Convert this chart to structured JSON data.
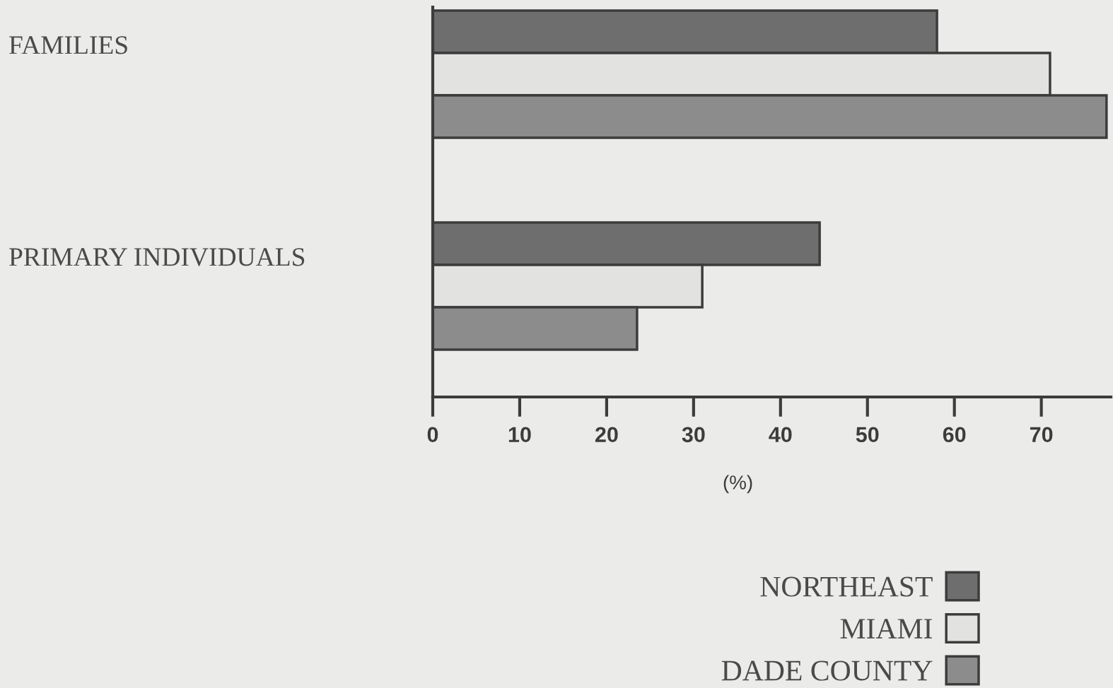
{
  "chart_data": {
    "type": "bar",
    "orientation": "horizontal",
    "categories": [
      "FAMILIES",
      "PRIMARY INDIVIDUALS"
    ],
    "series": [
      {
        "name": "NORTHEAST",
        "color": "#6e6e6e",
        "values": [
          58,
          44.5
        ]
      },
      {
        "name": "MIAMI",
        "color": "#e2e2e0",
        "values": [
          71,
          31
        ]
      },
      {
        "name": "DADE COUNTY",
        "color": "#8c8c8c",
        "values": [
          77.5,
          23.5
        ]
      }
    ],
    "xlabel": "(%)",
    "xlim": [
      0,
      78
    ],
    "xticks": [
      0,
      10,
      20,
      30,
      40,
      50,
      60,
      70
    ],
    "grid": false,
    "legend": "bottom right"
  }
}
